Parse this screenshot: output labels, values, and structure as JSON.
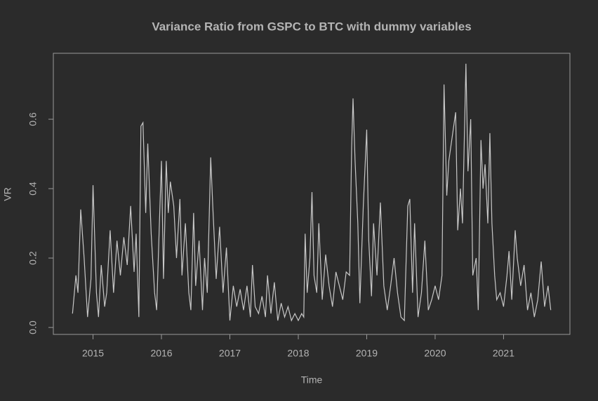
{
  "chart_data": {
    "type": "line",
    "title": "Variance Ratio from GSPC to BTC with dummy variables",
    "x_label": "Time",
    "y_label": "VR",
    "color": "#c8c8c8",
    "xlim": [
      2014.42,
      2021.97
    ],
    "ylim": [
      -0.02,
      0.79
    ],
    "xticks": [
      2015,
      2016,
      2017,
      2018,
      2019,
      2020,
      2021
    ],
    "yticks": [
      {
        "value": 0,
        "label": "0.0"
      },
      0.2,
      0.4,
      0.6
    ],
    "x": [
      2014.7,
      2014.75,
      2014.78,
      2014.82,
      2014.87,
      2014.92,
      2014.97,
      2015.0,
      2015.05,
      2015.08,
      2015.12,
      2015.17,
      2015.2,
      2015.25,
      2015.3,
      2015.35,
      2015.4,
      2015.45,
      2015.5,
      2015.55,
      2015.6,
      2015.63,
      2015.67,
      2015.7,
      2015.73,
      2015.77,
      2015.8,
      2015.85,
      2015.9,
      2015.93,
      2015.97,
      2016.0,
      2016.03,
      2016.07,
      2016.1,
      2016.13,
      2016.18,
      2016.22,
      2016.27,
      2016.3,
      2016.35,
      2016.4,
      2016.43,
      2016.47,
      2016.5,
      2016.55,
      2016.6,
      2016.63,
      2016.67,
      2016.72,
      2016.75,
      2016.8,
      2016.85,
      2016.9,
      2016.95,
      2017.0,
      2017.05,
      2017.1,
      2017.15,
      2017.2,
      2017.25,
      2017.3,
      2017.33,
      2017.37,
      2017.42,
      2017.47,
      2017.52,
      2017.55,
      2017.6,
      2017.65,
      2017.7,
      2017.75,
      2017.8,
      2017.85,
      2017.9,
      2017.95,
      2018.0,
      2018.05,
      2018.08,
      2018.1,
      2018.13,
      2018.17,
      2018.2,
      2018.23,
      2018.27,
      2018.3,
      2018.35,
      2018.4,
      2018.45,
      2018.5,
      2018.55,
      2018.6,
      2018.65,
      2018.7,
      2018.75,
      2018.78,
      2018.8,
      2018.83,
      2018.87,
      2018.9,
      2018.95,
      2019.0,
      2019.03,
      2019.07,
      2019.1,
      2019.15,
      2019.2,
      2019.25,
      2019.3,
      2019.35,
      2019.4,
      2019.45,
      2019.5,
      2019.55,
      2019.6,
      2019.63,
      2019.67,
      2019.7,
      2019.75,
      2019.8,
      2019.85,
      2019.9,
      2019.95,
      2020.0,
      2020.05,
      2020.1,
      2020.13,
      2020.17,
      2020.2,
      2020.25,
      2020.3,
      2020.33,
      2020.37,
      2020.4,
      2020.45,
      2020.48,
      2020.52,
      2020.55,
      2020.6,
      2020.63,
      2020.67,
      2020.7,
      2020.73,
      2020.77,
      2020.8,
      2020.83,
      2020.87,
      2020.9,
      2020.95,
      2021.0,
      2021.05,
      2021.08,
      2021.12,
      2021.17,
      2021.2,
      2021.25,
      2021.3,
      2021.35,
      2021.4,
      2021.45,
      2021.5,
      2021.55,
      2021.6,
      2021.65,
      2021.69
    ],
    "values": [
      0.04,
      0.15,
      0.1,
      0.34,
      0.2,
      0.03,
      0.14,
      0.41,
      0.1,
      0.03,
      0.18,
      0.06,
      0.1,
      0.28,
      0.1,
      0.25,
      0.15,
      0.26,
      0.18,
      0.35,
      0.16,
      0.27,
      0.03,
      0.58,
      0.59,
      0.33,
      0.53,
      0.27,
      0.1,
      0.05,
      0.3,
      0.48,
      0.14,
      0.48,
      0.33,
      0.42,
      0.35,
      0.2,
      0.37,
      0.15,
      0.3,
      0.1,
      0.05,
      0.33,
      0.12,
      0.25,
      0.05,
      0.2,
      0.1,
      0.49,
      0.35,
      0.14,
      0.29,
      0.1,
      0.23,
      0.02,
      0.12,
      0.06,
      0.11,
      0.05,
      0.12,
      0.03,
      0.18,
      0.06,
      0.04,
      0.09,
      0.03,
      0.15,
      0.04,
      0.13,
      0.02,
      0.07,
      0.03,
      0.06,
      0.02,
      0.04,
      0.02,
      0.04,
      0.03,
      0.27,
      0.1,
      0.2,
      0.39,
      0.15,
      0.1,
      0.3,
      0.08,
      0.21,
      0.12,
      0.06,
      0.16,
      0.12,
      0.08,
      0.16,
      0.15,
      0.52,
      0.66,
      0.48,
      0.3,
      0.07,
      0.35,
      0.57,
      0.25,
      0.09,
      0.3,
      0.15,
      0.36,
      0.12,
      0.05,
      0.12,
      0.2,
      0.1,
      0.03,
      0.02,
      0.35,
      0.37,
      0.1,
      0.3,
      0.03,
      0.1,
      0.25,
      0.05,
      0.08,
      0.12,
      0.08,
      0.15,
      0.7,
      0.38,
      0.48,
      0.55,
      0.62,
      0.28,
      0.4,
      0.3,
      0.76,
      0.45,
      0.6,
      0.15,
      0.2,
      0.05,
      0.54,
      0.4,
      0.47,
      0.3,
      0.56,
      0.3,
      0.15,
      0.08,
      0.1,
      0.06,
      0.15,
      0.22,
      0.08,
      0.28,
      0.2,
      0.12,
      0.18,
      0.05,
      0.1,
      0.03,
      0.08,
      0.19,
      0.06,
      0.12,
      0.05
    ]
  }
}
